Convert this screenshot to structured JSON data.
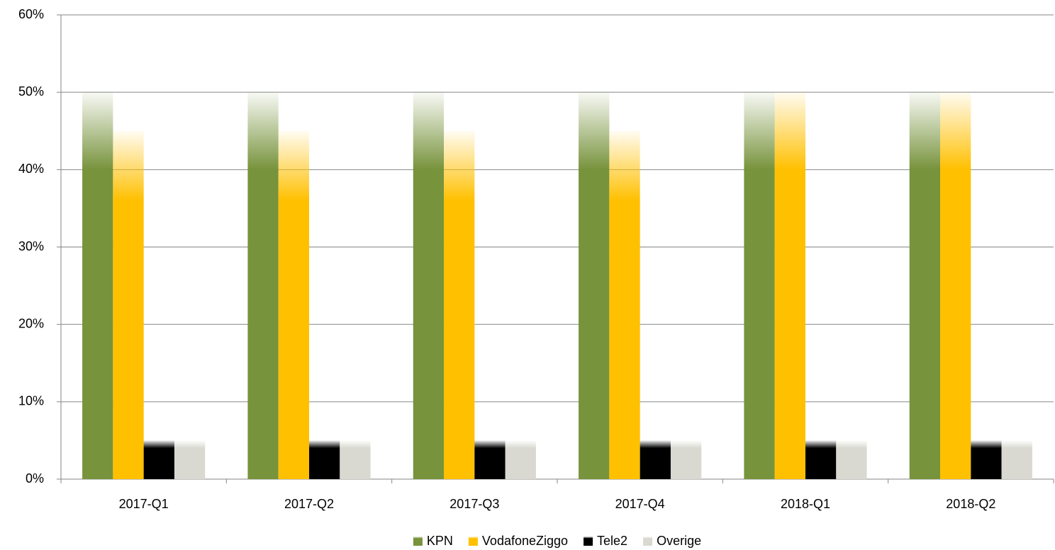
{
  "chart_data": {
    "type": "bar",
    "categories": [
      "2017-Q1",
      "2017-Q2",
      "2017-Q3",
      "2017-Q4",
      "2018-Q1",
      "2018-Q2"
    ],
    "series": [
      {
        "name": "KPN",
        "color": "#77933c",
        "values": [
          50,
          50,
          50,
          50,
          50,
          50
        ]
      },
      {
        "name": "VodafoneZiggo",
        "color": "#ffc000",
        "values": [
          45,
          45,
          45,
          45,
          50,
          50
        ]
      },
      {
        "name": "Tele2",
        "color": "#000000",
        "values": [
          5,
          5,
          5,
          5,
          5,
          5
        ]
      },
      {
        "name": "Overige",
        "color": "#d9d9d1",
        "values": [
          5,
          5,
          5,
          5,
          5,
          5
        ]
      }
    ],
    "ylim": [
      0,
      60
    ],
    "yticks": [
      {
        "value": 0,
        "label": "0%"
      },
      {
        "value": 10,
        "label": "10%"
      },
      {
        "value": 20,
        "label": "20%"
      },
      {
        "value": 30,
        "label": "30%"
      },
      {
        "value": 40,
        "label": "40%"
      },
      {
        "value": 50,
        "label": "50%"
      },
      {
        "value": 60,
        "label": "60%"
      }
    ],
    "grid": true,
    "legend": "bottom"
  }
}
